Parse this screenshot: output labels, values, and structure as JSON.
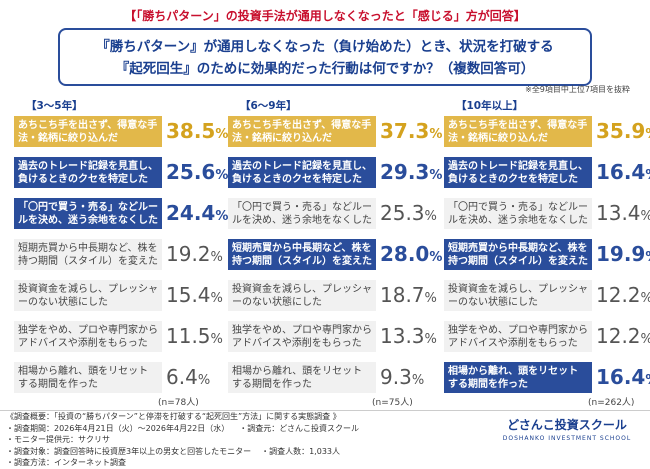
{
  "header": {
    "banner": "【「勝ちパターン」の投資手法が通用しなくなったと「感じる」方が回答】",
    "question_line1": "『勝ちパターン』が通用しなくなった（負け始めた）とき、状況を打破する",
    "question_line2": "『起死回生』のために効果的だった行動は何ですか？（複数回答可）",
    "note": "※全9項目中上位7項目を抜粋"
  },
  "chart_data": [
    {
      "type": "bar",
      "title": "【3～5年】",
      "n": "(n=78人)",
      "items": [
        {
          "label": "あちこち手を出さず、得意な手法・銘柄に絞り込んだ",
          "value": 38.5,
          "highlight": "gold"
        },
        {
          "label": "過去のトレード記録を見直し、負けるときのクセを特定した",
          "value": 25.6,
          "highlight": "blue"
        },
        {
          "label": "「〇円で買う・売る」などルールを決め、迷う余地をなくした",
          "value": 24.4,
          "highlight": "blue"
        },
        {
          "label": "短期売買から中長期など、株を持つ期間（スタイル）を変えた",
          "value": 19.2,
          "highlight": "gray"
        },
        {
          "label": "投資資金を減らし、プレッシャーのない状態にした",
          "value": 15.4,
          "highlight": "gray"
        },
        {
          "label": "独学をやめ、プロや専門家からアドバイスや添削をもらった",
          "value": 11.5,
          "highlight": "gray"
        },
        {
          "label": "相場から離れ、頭をリセットする期間を作った",
          "value": 6.4,
          "highlight": "gray"
        }
      ]
    },
    {
      "type": "bar",
      "title": "【6～9年】",
      "n": "(n=75人)",
      "items": [
        {
          "label": "あちこち手を出さず、得意な手法・銘柄に絞り込んだ",
          "value": 37.3,
          "highlight": "gold"
        },
        {
          "label": "過去のトレード記録を見直し、負けるときのクセを特定した",
          "value": 29.3,
          "highlight": "blue"
        },
        {
          "label": "「〇円で買う・売る」などルールを決め、迷う余地をなくした",
          "value": 25.3,
          "highlight": "gray"
        },
        {
          "label": "短期売買から中長期など、株を持つ期間（スタイル）を変えた",
          "value": 28.0,
          "highlight": "blue"
        },
        {
          "label": "投資資金を減らし、プレッシャーのない状態にした",
          "value": 18.7,
          "highlight": "gray"
        },
        {
          "label": "独学をやめ、プロや専門家からアドバイスや添削をもらった",
          "value": 13.3,
          "highlight": "gray"
        },
        {
          "label": "相場から離れ、頭をリセットする期間を作った",
          "value": 9.3,
          "highlight": "gray"
        }
      ]
    },
    {
      "type": "bar",
      "title": "【10年以上】",
      "n": "(n=262人)",
      "items": [
        {
          "label": "あちこち手を出さず、得意な手法・銘柄に絞り込んだ",
          "value": 35.9,
          "highlight": "gold"
        },
        {
          "label": "過去のトレード記録を見直し、負けるときのクセを特定した",
          "value": 16.4,
          "highlight": "blue"
        },
        {
          "label": "「〇円で買う・売る」などルールを決め、迷う余地をなくした",
          "value": 13.4,
          "highlight": "gray"
        },
        {
          "label": "短期売買から中長期など、株を持つ期間（スタイル）を変えた",
          "value": 19.9,
          "highlight": "blue"
        },
        {
          "label": "投資資金を減らし、プレッシャーのない状態にした",
          "value": 12.2,
          "highlight": "gray"
        },
        {
          "label": "独学をやめ、プロや専門家からアドバイスや添削をもらった",
          "value": 12.2,
          "highlight": "gray"
        },
        {
          "label": "相場から離れ、頭をリセットする期間を作った",
          "value": 16.4,
          "highlight": "blue"
        }
      ]
    }
  ],
  "footer": {
    "title": "《調査概要：「投資の“勝ちパターン”と停滞を打破する“起死回生”方法」に関する実態調査 》",
    "period": "・調査期間：2026年4月21日（火）～2026年4月22日（水）",
    "provider": "・調査元：どさんこ投資スクール",
    "monitor": "・モニター提供元：サクリサ",
    "target": "・調査対象：調査回答時に投資歴3年以上の男女と回答したモニター",
    "count": "・調査人数：1,033人",
    "method": "・調査方法：インターネット調査"
  },
  "brand": {
    "name": "どさんこ投資スクール",
    "sub": "DOSHANKO INVESTMENT SCHOOL"
  }
}
